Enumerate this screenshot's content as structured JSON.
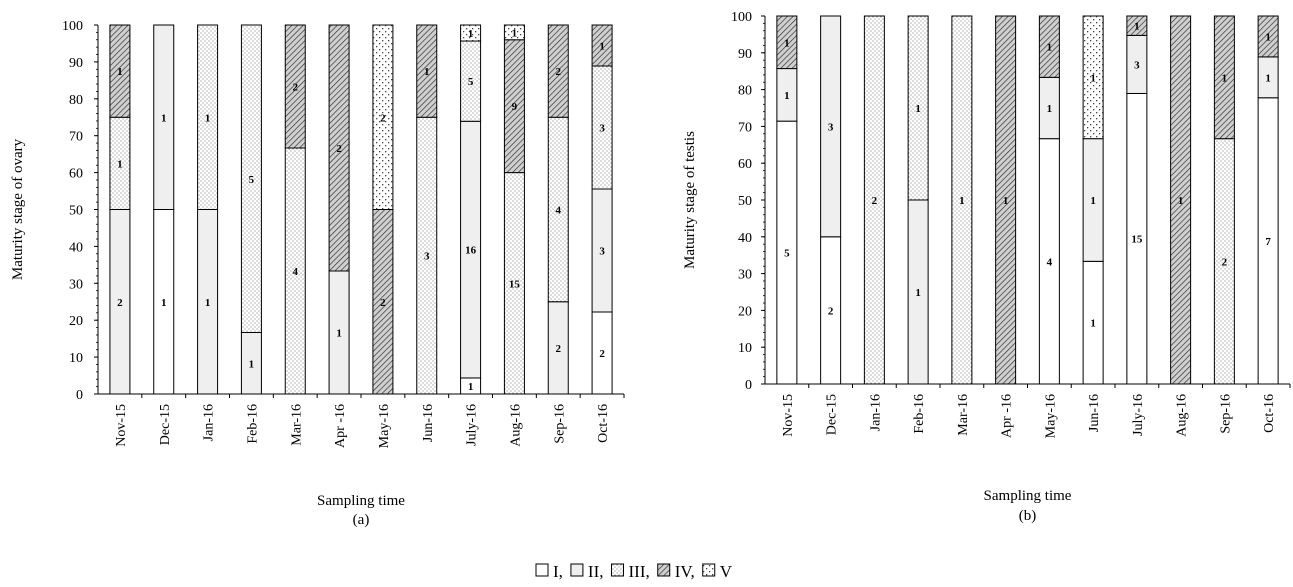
{
  "legend": {
    "entries": [
      {
        "label": "I",
        "pattern": "blank"
      },
      {
        "label": "II",
        "pattern": "light"
      },
      {
        "label": "III",
        "pattern": "dots"
      },
      {
        "label": "IV",
        "pattern": "hatch"
      },
      {
        "label": "V",
        "pattern": "sparse"
      }
    ],
    "placement": "bottom-center"
  },
  "colors": {
    "I": "#ffffff",
    "II": "#efefef",
    "outline": "#000000"
  },
  "chart_data": [
    {
      "type": "bar",
      "stacked": true,
      "caption": "(a)",
      "xlabel": "Sampling time",
      "ylabel": "Maturity stage of ovary",
      "ylim": [
        0,
        100
      ],
      "yticks": [
        0,
        10,
        20,
        30,
        40,
        50,
        60,
        70,
        80,
        90,
        100
      ],
      "grid": false,
      "categories": [
        "Nov-15",
        "Dec-15",
        "Jan-16",
        "Feb-16",
        "Mar-16",
        "Apr -16",
        "May-16",
        "Jun-16",
        "July-16",
        "Aug-16",
        "Sep-16",
        "Oct-16"
      ],
      "series": [
        {
          "name": "I",
          "counts": [
            0,
            1,
            0,
            0,
            0,
            0,
            0,
            0,
            1,
            0,
            0,
            2
          ]
        },
        {
          "name": "II",
          "counts": [
            2,
            1,
            1,
            1,
            0,
            1,
            0,
            0,
            16,
            0,
            2,
            3
          ]
        },
        {
          "name": "III",
          "counts": [
            1,
            0,
            1,
            5,
            4,
            0,
            0,
            3,
            5,
            15,
            4,
            3
          ]
        },
        {
          "name": "IV",
          "counts": [
            1,
            0,
            0,
            0,
            2,
            2,
            2,
            1,
            0,
            9,
            2,
            1
          ]
        },
        {
          "name": "V",
          "counts": [
            0,
            0,
            0,
            0,
            0,
            0,
            2,
            0,
            1,
            1,
            0,
            0
          ]
        }
      ]
    },
    {
      "type": "bar",
      "stacked": true,
      "caption": "(b)",
      "xlabel": "Sampling time",
      "ylabel": "Maturity stage of  testis",
      "ylim": [
        0,
        100
      ],
      "yticks": [
        0,
        10,
        20,
        30,
        40,
        50,
        60,
        70,
        80,
        90,
        100
      ],
      "grid": false,
      "categories": [
        "Nov-15",
        "Dec-15",
        "Jan-16",
        "Feb-16",
        "Mar-16",
        "Apr -16",
        "May-16",
        "Jun-16",
        "July-16",
        "Aug-16",
        "Sep-16",
        "Oct-16"
      ],
      "series": [
        {
          "name": "I",
          "counts": [
            5,
            2,
            0,
            0,
            0,
            0,
            4,
            1,
            15,
            0,
            0,
            7
          ]
        },
        {
          "name": "II",
          "counts": [
            1,
            3,
            0,
            1,
            0,
            0,
            1,
            1,
            3,
            0,
            0,
            1
          ]
        },
        {
          "name": "III",
          "counts": [
            0,
            0,
            2,
            1,
            1,
            0,
            0,
            0,
            0,
            0,
            2,
            0
          ]
        },
        {
          "name": "IV",
          "counts": [
            1,
            0,
            0,
            0,
            0,
            1,
            1,
            0,
            1,
            1,
            1,
            1
          ]
        },
        {
          "name": "V",
          "counts": [
            0,
            0,
            0,
            0,
            0,
            0,
            0,
            1,
            0,
            0,
            0,
            0
          ]
        }
      ]
    }
  ]
}
